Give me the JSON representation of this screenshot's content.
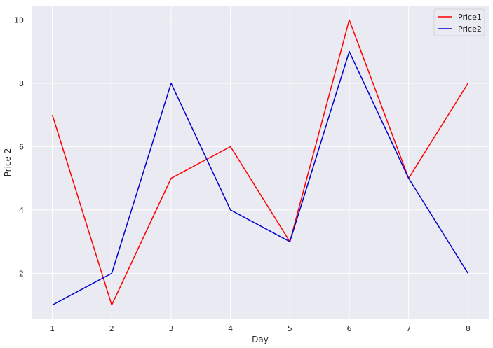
{
  "chart_data": {
    "type": "line",
    "title": "",
    "xlabel": "Day",
    "ylabel": "Price 2",
    "x": [
      1,
      2,
      3,
      4,
      5,
      6,
      7,
      8
    ],
    "xticks": [
      1,
      2,
      3,
      4,
      5,
      6,
      7,
      8
    ],
    "yticks": [
      2,
      4,
      6,
      8,
      10
    ],
    "xlim": [
      0.65,
      8.35
    ],
    "ylim": [
      0.55,
      10.45
    ],
    "grid": true,
    "legend_position": "top-right",
    "series": [
      {
        "name": "Price1",
        "color": "#ff0000",
        "values": [
          7,
          1,
          5,
          6,
          3,
          10,
          5,
          8
        ]
      },
      {
        "name": "Price2",
        "color": "#0000cc",
        "values": [
          1,
          2,
          8,
          4,
          3,
          9,
          5,
          2
        ]
      }
    ]
  },
  "style": {
    "plot_background": "#eaeaf2",
    "grid_color": "#ffffff",
    "text_color": "#262626"
  }
}
